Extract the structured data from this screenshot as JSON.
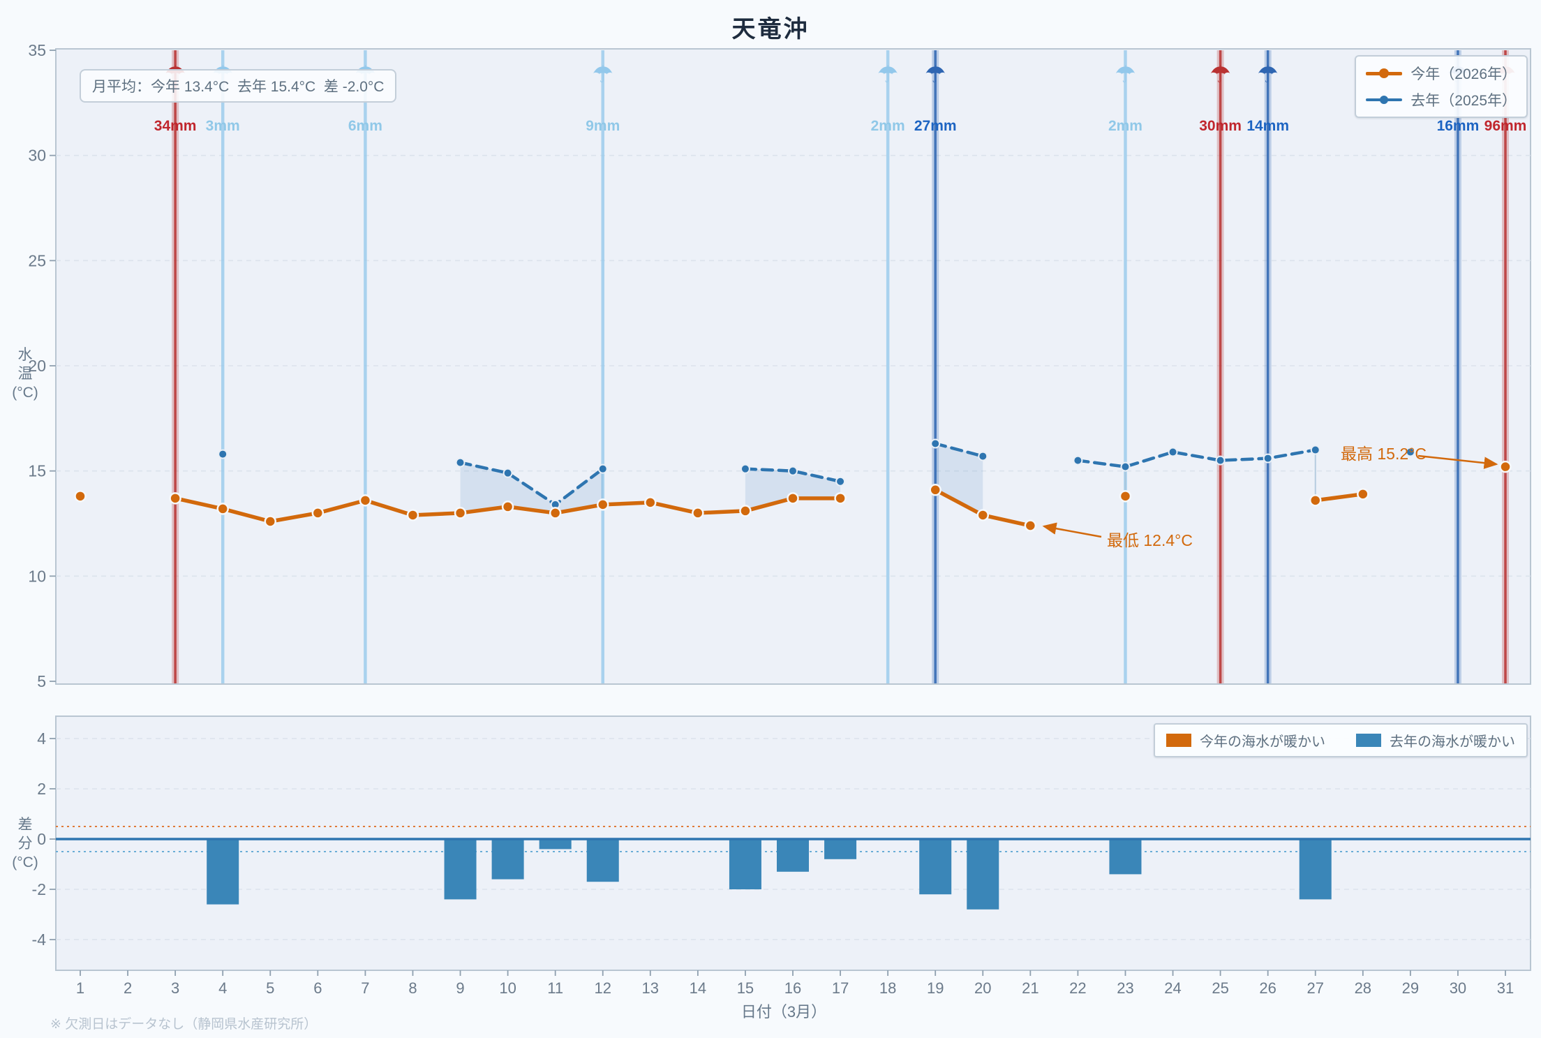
{
  "title": "天竜沖",
  "stats_box": {
    "text": "月平均：今年 13.4°C  去年 15.4°C  差 -2.0°C"
  },
  "axis": {
    "y_top_lines": [
      "水",
      "温",
      "(°C)"
    ],
    "y_bottom_lines": [
      "差",
      "分",
      "(°C)"
    ]
  },
  "footer": "※ 欠測日はデータなし（静岡県水産研究所）",
  "icons": {
    "rain_icon": "☂"
  },
  "colors": {
    "orange": "#d2690c",
    "blue": "#2e75b0",
    "bar_blue": "#3a86b8",
    "fill_blue": "rgba(46,117,176,0.13)",
    "plot_bg": "#edf1f8",
    "plot_border": "#b9c6d2",
    "grid": "#dce3ec",
    "tick_text": "#6b7a8a",
    "rain_light": "#93c8eb",
    "rain_light_label": "#90c8e8",
    "rain_medium": "#2f66b2",
    "rain_medium_label": "#1d64c2",
    "rain_heavy": "#b93232",
    "rain_heavy_label": "#c0262d",
    "threshold_pos": "#e07b39",
    "threshold_neg": "#6aadd6",
    "connector": "#a9c4da"
  },
  "chart_data": [
    {
      "type": "line",
      "title": "天竜沖",
      "xlabel": "日付（3月）",
      "ylabel": "水温(°C)",
      "ylim": [
        5,
        35
      ],
      "y_ticks": [
        35,
        30,
        25,
        20,
        15,
        10,
        5
      ],
      "x_ticks": [
        1,
        2,
        3,
        4,
        5,
        6,
        7,
        8,
        9,
        10,
        11,
        12,
        13,
        14,
        15,
        16,
        17,
        18,
        19,
        20,
        21,
        22,
        23,
        24,
        25,
        26,
        27,
        28,
        29,
        30,
        31
      ],
      "legend_position": "top-right",
      "grid": true,
      "series": [
        {
          "name": "今年（2026年）",
          "color": "#d2690c",
          "style": "solid",
          "values": [
            13.8,
            null,
            13.7,
            13.2,
            12.6,
            13.0,
            13.6,
            12.9,
            13.0,
            13.3,
            13.0,
            13.4,
            13.5,
            13.0,
            13.1,
            13.7,
            13.7,
            null,
            14.1,
            12.9,
            12.4,
            null,
            13.8,
            null,
            null,
            null,
            13.6,
            13.9,
            null,
            null,
            15.2
          ]
        },
        {
          "name": "去年（2025年）",
          "color": "#2e75b0",
          "style": "dashed",
          "values": [
            null,
            null,
            null,
            15.8,
            null,
            null,
            null,
            null,
            15.4,
            14.9,
            13.4,
            15.1,
            null,
            null,
            15.1,
            15.0,
            14.5,
            null,
            16.3,
            15.7,
            null,
            15.5,
            15.2,
            15.9,
            15.5,
            15.6,
            16.0,
            null,
            15.9,
            null,
            null
          ]
        }
      ],
      "monthly_average": {
        "this_year_c": 13.4,
        "last_year_c": 15.4,
        "difference_c": -2.0
      },
      "annotations": [
        {
          "text": "最低 12.4°C",
          "day": 21,
          "value": 12.4
        },
        {
          "text": "最高 15.2°C",
          "day": 31,
          "value": 15.2
        }
      ],
      "rainfall": [
        {
          "day": 3,
          "label": "34mm",
          "level": "heavy"
        },
        {
          "day": 4,
          "label": "3mm",
          "level": "light"
        },
        {
          "day": 7,
          "label": "6mm",
          "level": "light"
        },
        {
          "day": 12,
          "label": "9mm",
          "level": "light"
        },
        {
          "day": 18,
          "label": "2mm",
          "level": "light"
        },
        {
          "day": 19,
          "label": "27mm",
          "level": "medium"
        },
        {
          "day": 23,
          "label": "2mm",
          "level": "light"
        },
        {
          "day": 25,
          "label": "30mm",
          "level": "heavy"
        },
        {
          "day": 26,
          "label": "14mm",
          "level": "medium"
        },
        {
          "day": 30,
          "label": "16mm",
          "level": "medium"
        },
        {
          "day": 31,
          "label": "96mm",
          "level": "heavy"
        }
      ],
      "connector_days": [
        23,
        27
      ]
    },
    {
      "type": "bar",
      "xlabel": "日付（3月）",
      "ylabel": "差分(°C)",
      "ylim": [
        -5,
        5
      ],
      "y_ticks": [
        4,
        2,
        0,
        -2,
        -4
      ],
      "x_ticks": [
        1,
        2,
        3,
        4,
        5,
        6,
        7,
        8,
        9,
        10,
        11,
        12,
        13,
        14,
        15,
        16,
        17,
        18,
        19,
        20,
        21,
        22,
        23,
        24,
        25,
        26,
        27,
        28,
        29,
        30,
        31
      ],
      "values": [
        null,
        null,
        null,
        -2.6,
        null,
        null,
        null,
        null,
        -2.4,
        -1.6,
        -0.4,
        -1.7,
        null,
        null,
        -2.0,
        -1.3,
        -0.8,
        null,
        -2.2,
        -2.8,
        null,
        null,
        -1.4,
        null,
        null,
        null,
        -2.4,
        null,
        null,
        null,
        null
      ],
      "thresholds": {
        "positive": 0.5,
        "negative": -0.5
      },
      "legend": [
        {
          "label": "今年の海水が暖かい",
          "color": "#d2690c"
        },
        {
          "label": "去年の海水が暖かい",
          "color": "#3a86b8"
        }
      ]
    }
  ]
}
